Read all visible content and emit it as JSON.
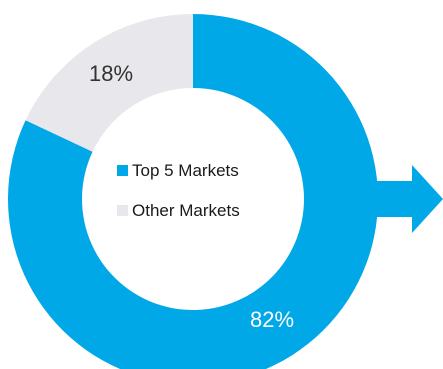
{
  "chart_data": {
    "type": "pie",
    "donut": true,
    "title": "",
    "categories": [
      "Top 5 Markets",
      "Other Markets"
    ],
    "values": [
      82,
      18
    ],
    "labels": [
      "82%",
      "18%"
    ],
    "colors": {
      "Top 5 Markets": "#00a8e8",
      "Other Markets": "#e8e8ec"
    },
    "label_colors": {
      "Top 5 Markets": "#ffffff",
      "Other Markets": "#333333"
    },
    "legend": {
      "placement": "center",
      "entries": [
        "Top 5 Markets",
        "Other Markets"
      ]
    },
    "arrow": {
      "direction": "right",
      "color": "#00a8e8"
    }
  }
}
